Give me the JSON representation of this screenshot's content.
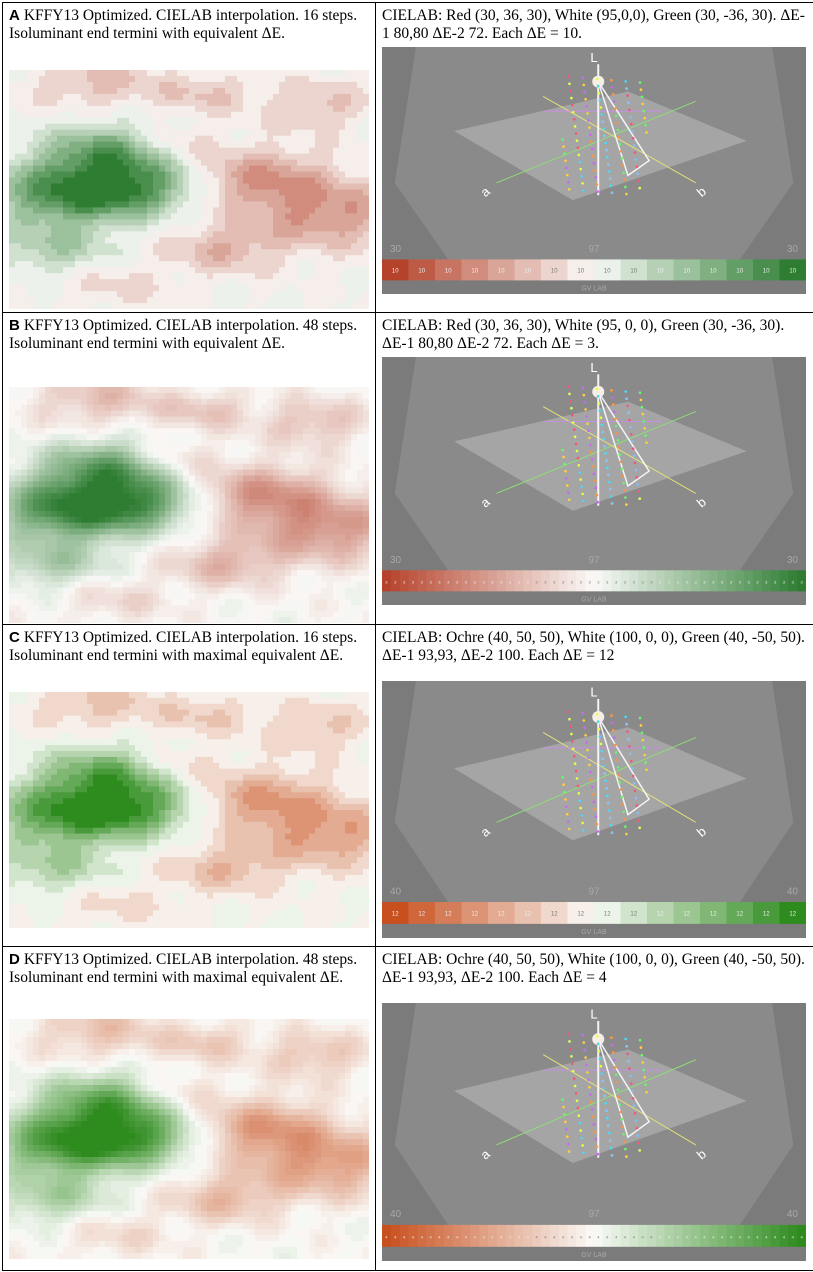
{
  "panels": [
    {
      "letter": "A",
      "left_caption": "KFFY13 Optimized. CIELAB interpolation. 16 steps. Isoluminant end termini with equivalent ΔE.",
      "right_caption": "CIELAB: Red (30, 36, 30), White (95,0,0), Green (30, -36, 30). ΔE-1 80,80 ΔE-2 72. Each ΔE = 10.",
      "steps": 16,
      "step_label": "10",
      "end_label_left": "30",
      "end_label_right": "30",
      "mid_label": "97",
      "axis_l": "L",
      "axis_a": "a",
      "axis_b": "b",
      "footer": "GV LAB",
      "warm_color": "#b5432c",
      "cool_color": "#2e7d32"
    },
    {
      "letter": "B",
      "left_caption": "KFFY13 Optimized. CIELAB interpolation. 48 steps. Isoluminant end termini with equivalent ΔE.",
      "right_caption": "CIELAB: Red (30, 36, 30), White (95, 0, 0), Green (30, -36, 30). ΔE-1 80,80 ΔE-2 72. Each ΔE = 3.",
      "steps": 48,
      "step_label": "3",
      "end_label_left": "30",
      "end_label_right": "30",
      "mid_label": "97",
      "axis_l": "L",
      "axis_a": "a",
      "axis_b": "b",
      "footer": "GV LAB",
      "warm_color": "#b5432c",
      "cool_color": "#2e7d32"
    },
    {
      "letter": "C",
      "left_caption": "KFFY13 Optimized. CIELAB interpolation. 16 steps. Isoluminant end termini with maximal equivalent ΔE.",
      "right_caption": "CIELAB: Ochre (40, 50, 50), White (100, 0, 0), Green (40, -50, 50). ΔE-1 93,93, ΔE-2 100. Each ΔE = 12",
      "steps": 16,
      "step_label": "12",
      "end_label_left": "40",
      "end_label_right": "40",
      "mid_label": "97",
      "axis_l": "L",
      "axis_a": "a",
      "axis_b": "b",
      "footer": "GV LAB",
      "warm_color": "#c8501e",
      "cool_color": "#2e8b1e"
    },
    {
      "letter": "D",
      "left_caption": "KFFY13 Optimized. CIELAB interpolation. 48 steps. Isoluminant end termini with maximal equivalent ΔE.",
      "right_caption": "CIELAB: Ochre (40, 50, 50), White (100, 0, 0), Green (40, -50, 50). ΔE-1 93,93, ΔE-2 100. Each ΔE = 4",
      "steps": 48,
      "step_label": "4",
      "end_label_left": "40",
      "end_label_right": "40",
      "mid_label": "97",
      "axis_l": "L",
      "axis_a": "a",
      "axis_b": "b",
      "footer": "GV LAB",
      "warm_color": "#c8501e",
      "cool_color": "#2e8b1e"
    }
  ]
}
